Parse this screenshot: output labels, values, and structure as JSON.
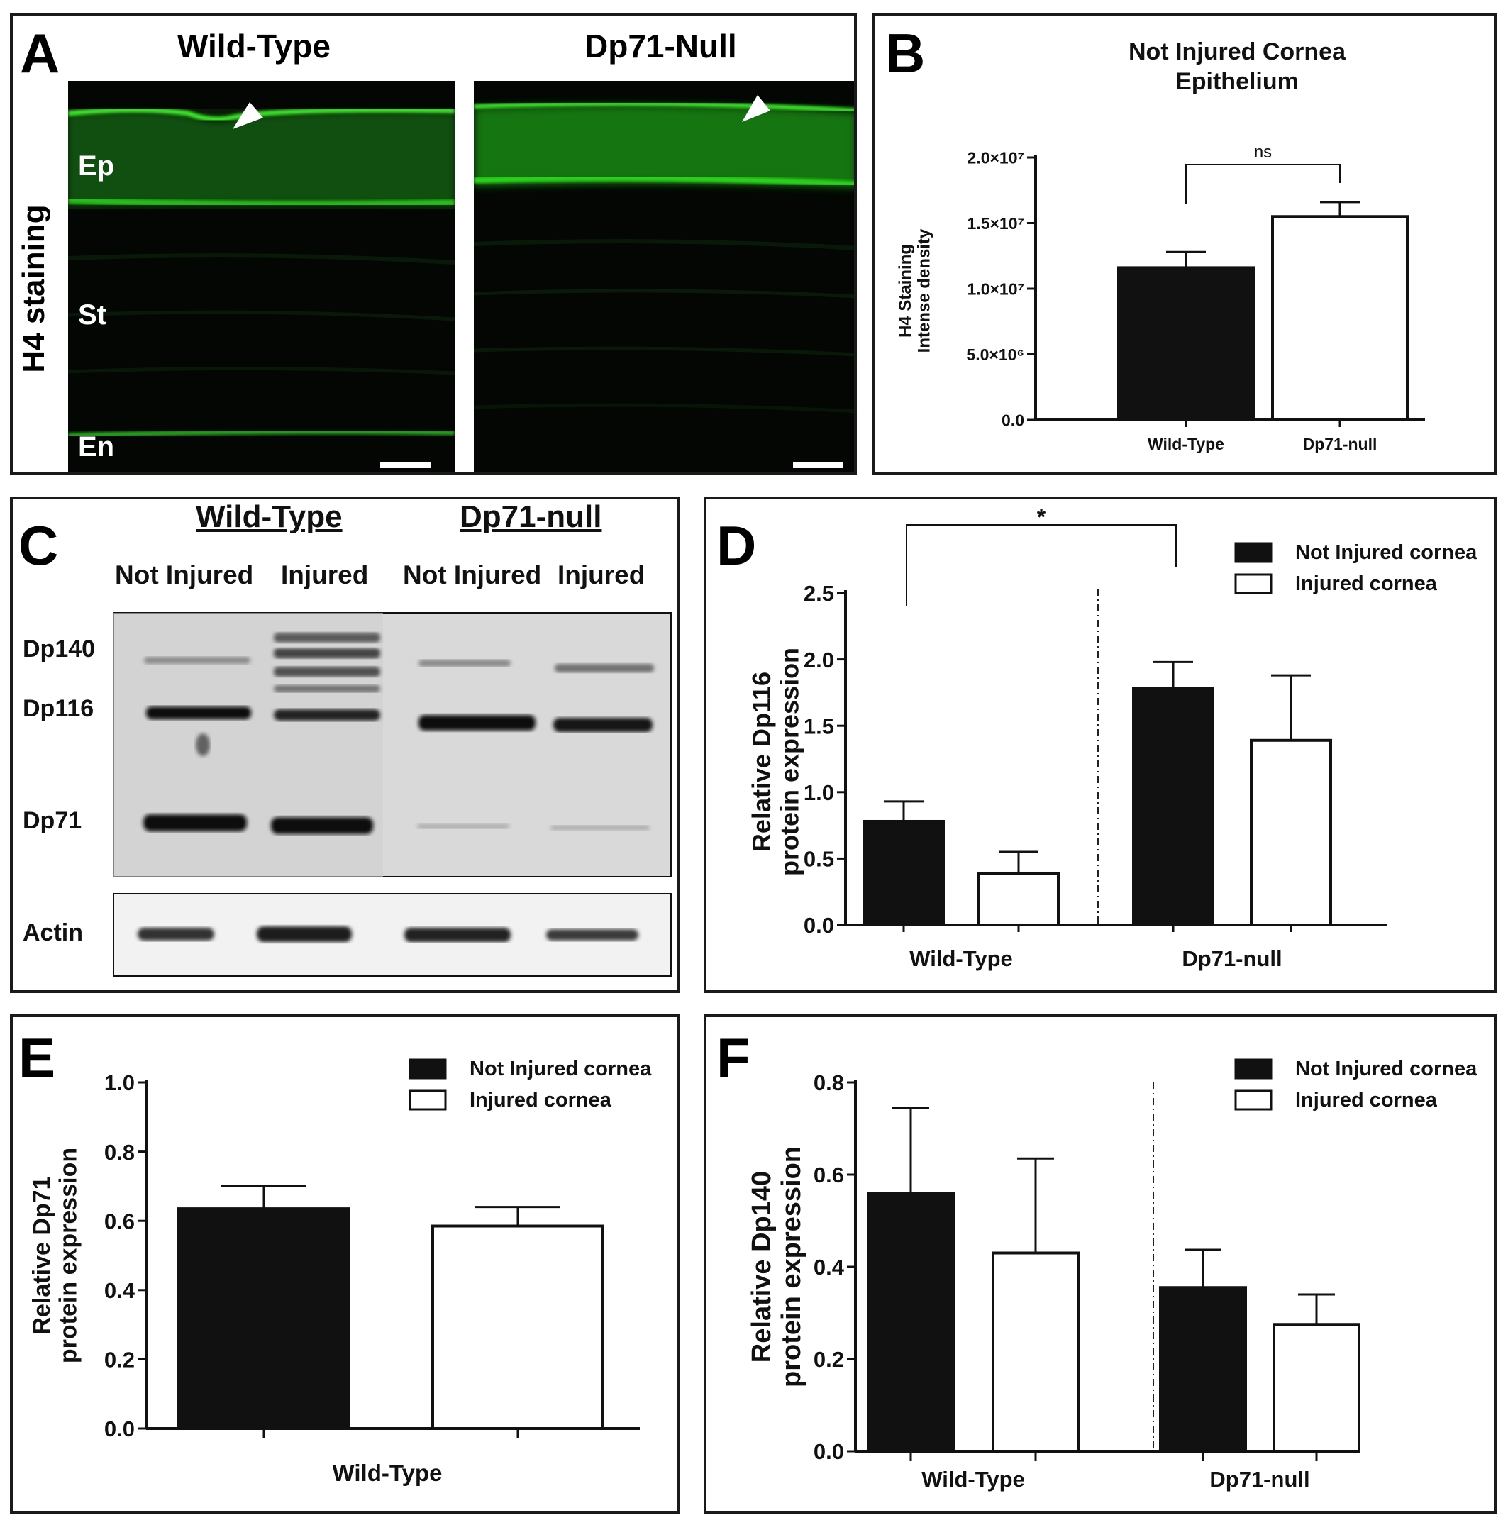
{
  "panel_a": {
    "letter": "A",
    "side_label": "H4 staining",
    "col_headers": [
      "Wild-Type",
      "Dp71-Null"
    ],
    "layer_labels": [
      "Ep",
      "St",
      "En"
    ]
  },
  "panel_c": {
    "letter": "C",
    "group_headers": [
      "Wild-Type",
      "Dp71-null"
    ],
    "lane_labels": [
      "Not Injured",
      "Injured",
      "Not Injured",
      "Injured"
    ],
    "band_labels": [
      "Dp140",
      "Dp116",
      "Dp71"
    ],
    "loading_label": "Actin"
  },
  "chart_data": [
    {
      "panel": "B",
      "type": "bar",
      "title": "Not Injured Cornea Epithelium",
      "title_lines": [
        "Not Injured Cornea",
        "Epithelium"
      ],
      "ylabel": "H4 Staining Intense density",
      "ylabel_lines": [
        "H4 Staining",
        "Intense density"
      ],
      "ylim": [
        0,
        20000000
      ],
      "yticks": [
        0,
        5000000,
        10000000,
        15000000,
        20000000
      ],
      "ytick_labels": [
        "0.0",
        "5.0×10⁶",
        "1.0×10⁷",
        "1.5×10⁷",
        "2.0×10⁷"
      ],
      "categories": [
        "Wild-Type",
        "Dp71-null"
      ],
      "values": [
        11600000,
        15500000
      ],
      "errors": [
        1200000,
        1100000
      ],
      "fills": [
        "#111111",
        "#ffffff"
      ],
      "annotation": "ns"
    },
    {
      "panel": "D",
      "type": "bar",
      "ylabel": "Relative Dp116 protein expression",
      "ylabel_lines": [
        "Relative Dp116",
        "protein expression"
      ],
      "ylim": [
        0,
        2.5
      ],
      "yticks": [
        0.0,
        0.5,
        1.0,
        1.5,
        2.0,
        2.5
      ],
      "ytick_labels": [
        "0.0",
        "0.5",
        "1.0",
        "1.5",
        "2.0",
        "2.5"
      ],
      "groups": [
        "Wild-Type",
        "Dp71-null"
      ],
      "series": [
        {
          "name": "Not Injured cornea",
          "values": [
            0.78,
            1.78
          ],
          "errors": [
            0.15,
            0.2
          ]
        },
        {
          "name": "Injured cornea",
          "values": [
            0.39,
            1.39
          ],
          "errors": [
            0.16,
            0.49
          ]
        }
      ],
      "annotation": "*",
      "legend_position": "top-right"
    },
    {
      "panel": "E",
      "type": "bar",
      "ylabel": "Relative Dp71 protein expression",
      "ylabel_lines": [
        "Relative Dp71",
        "protein expression"
      ],
      "ylim": [
        0,
        1.0
      ],
      "yticks": [
        0.0,
        0.2,
        0.4,
        0.6,
        0.8,
        1.0
      ],
      "ytick_labels": [
        "0.0",
        "0.2",
        "0.4",
        "0.6",
        "0.8",
        "1.0"
      ],
      "groups": [
        "Wild-Type"
      ],
      "series": [
        {
          "name": "Not Injured cornea",
          "values": [
            0.635
          ],
          "errors": [
            0.065
          ]
        },
        {
          "name": "Injured cornea",
          "values": [
            0.585
          ],
          "errors": [
            0.055
          ]
        }
      ],
      "legend_position": "top-right"
    },
    {
      "panel": "F",
      "type": "bar",
      "ylabel": "Relative Dp140 protein expression",
      "ylabel_lines": [
        "Relative Dp140",
        "protein expression"
      ],
      "ylim": [
        0,
        0.8
      ],
      "yticks": [
        0.0,
        0.2,
        0.4,
        0.6,
        0.8
      ],
      "ytick_labels": [
        "0.0",
        "0.2",
        "0.4",
        "0.6",
        "0.8"
      ],
      "groups": [
        "Wild-Type",
        "Dp71-null"
      ],
      "series": [
        {
          "name": "Not Injured cornea",
          "values": [
            0.56,
            0.355
          ],
          "errors": [
            0.185,
            0.082
          ]
        },
        {
          "name": "Injured cornea",
          "values": [
            0.43,
            0.275
          ],
          "errors": [
            0.205,
            0.065
          ]
        }
      ],
      "legend_position": "top-right"
    }
  ],
  "letters": {
    "b": "B",
    "d": "D",
    "e": "E",
    "f": "F"
  },
  "colors": {
    "fluorescence": "#2bd21f",
    "background": "#000000",
    "dark_bar": "#111111"
  }
}
